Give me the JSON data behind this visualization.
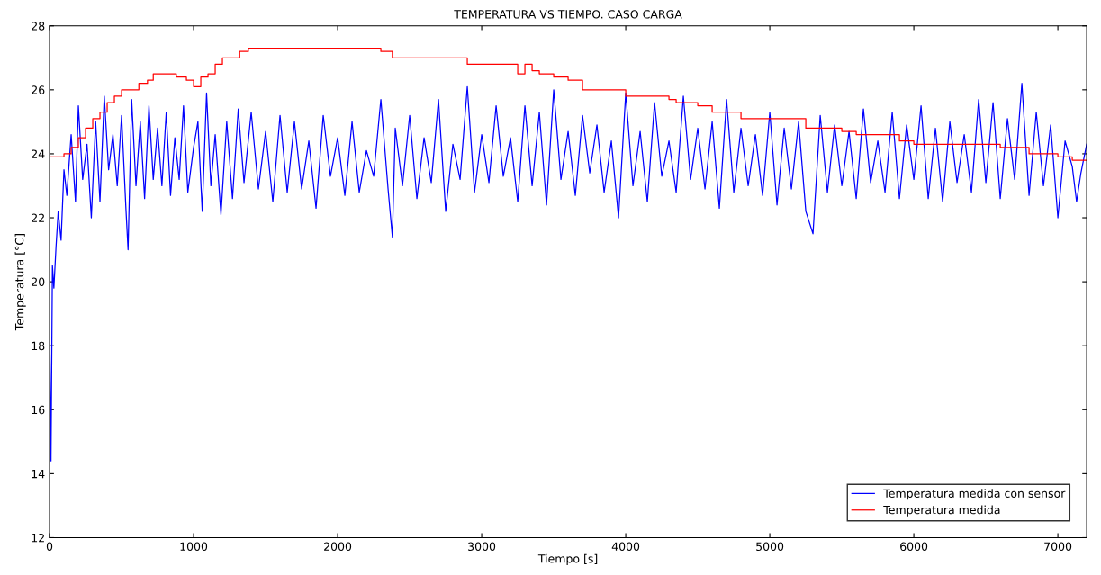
{
  "chart_data": {
    "type": "line",
    "title": "TEMPERATURA VS TIEMPO. CASO CARGA",
    "xlabel": "Tiempo [s]",
    "ylabel": "Temperatura [°C]",
    "xlim": [
      0,
      7200
    ],
    "ylim": [
      12,
      28
    ],
    "xticks": [
      0,
      1000,
      2000,
      3000,
      4000,
      5000,
      6000,
      7000
    ],
    "yticks": [
      12,
      14,
      16,
      18,
      20,
      22,
      24,
      26,
      28
    ],
    "grid": false,
    "legend": "bottom right",
    "line_style": "solid",
    "marker": "none",
    "series": [
      {
        "name": "Temperatura medida con sensor",
        "color": "#0000ff",
        "x": [
          0,
          10,
          20,
          30,
          45,
          60,
          80,
          100,
          120,
          150,
          180,
          200,
          230,
          260,
          290,
          320,
          350,
          380,
          410,
          440,
          470,
          500,
          530,
          545,
          570,
          600,
          630,
          660,
          690,
          720,
          750,
          780,
          810,
          840,
          870,
          900,
          930,
          960,
          1000,
          1030,
          1060,
          1090,
          1120,
          1150,
          1190,
          1230,
          1270,
          1310,
          1350,
          1400,
          1450,
          1500,
          1550,
          1600,
          1650,
          1700,
          1750,
          1800,
          1850,
          1900,
          1950,
          2000,
          2050,
          2100,
          2150,
          2200,
          2250,
          2300,
          2350,
          2380,
          2400,
          2450,
          2500,
          2550,
          2600,
          2650,
          2700,
          2750,
          2800,
          2850,
          2900,
          2950,
          3000,
          3050,
          3100,
          3150,
          3200,
          3250,
          3300,
          3350,
          3400,
          3450,
          3500,
          3550,
          3600,
          3650,
          3700,
          3750,
          3800,
          3850,
          3900,
          3950,
          4000,
          4050,
          4100,
          4150,
          4200,
          4250,
          4300,
          4350,
          4400,
          4450,
          4500,
          4550,
          4600,
          4650,
          4700,
          4750,
          4800,
          4850,
          4900,
          4950,
          5000,
          5050,
          5100,
          5150,
          5200,
          5250,
          5300,
          5350,
          5400,
          5450,
          5500,
          5550,
          5600,
          5650,
          5700,
          5750,
          5800,
          5850,
          5900,
          5950,
          6000,
          6050,
          6100,
          6150,
          6200,
          6250,
          6300,
          6350,
          6400,
          6450,
          6500,
          6550,
          6600,
          6650,
          6700,
          6750,
          6800,
          6850,
          6900,
          6950,
          7000,
          7050,
          7100,
          7130,
          7160,
          7200
        ],
        "values": [
          18.7,
          14.4,
          20.5,
          19.8,
          21.1,
          22.2,
          21.3,
          23.5,
          22.7,
          24.6,
          22.5,
          25.5,
          23.2,
          24.3,
          22.0,
          25.0,
          22.5,
          25.8,
          23.5,
          24.6,
          23.0,
          25.2,
          22.3,
          21.0,
          25.7,
          23.0,
          25.0,
          22.6,
          25.5,
          23.2,
          24.8,
          23.0,
          25.3,
          22.7,
          24.5,
          23.2,
          25.5,
          22.8,
          24.2,
          25.0,
          22.2,
          25.9,
          23.0,
          24.6,
          22.1,
          25.0,
          22.6,
          25.4,
          23.1,
          25.3,
          22.9,
          24.7,
          22.5,
          25.2,
          22.8,
          25.0,
          22.9,
          24.4,
          22.3,
          25.2,
          23.3,
          24.5,
          22.7,
          25.0,
          22.8,
          24.1,
          23.3,
          25.7,
          22.9,
          21.4,
          24.8,
          23.0,
          25.2,
          22.6,
          24.5,
          23.1,
          25.7,
          22.2,
          24.3,
          23.2,
          26.1,
          22.8,
          24.6,
          23.1,
          25.5,
          23.3,
          24.5,
          22.5,
          25.5,
          23.0,
          25.3,
          22.4,
          26.0,
          23.2,
          24.7,
          22.7,
          25.2,
          23.4,
          24.9,
          22.8,
          24.4,
          22.0,
          25.9,
          23.0,
          24.7,
          22.5,
          25.6,
          23.3,
          24.4,
          22.8,
          25.8,
          23.2,
          24.8,
          22.9,
          25.0,
          22.3,
          25.7,
          22.8,
          24.8,
          23.0,
          24.6,
          22.7,
          25.3,
          22.4,
          24.8,
          22.9,
          25.0,
          22.2,
          21.5,
          25.2,
          22.8,
          24.9,
          23.0,
          24.7,
          22.6,
          25.4,
          23.1,
          24.4,
          22.8,
          25.3,
          22.6,
          24.9,
          23.2,
          25.5,
          22.6,
          24.8,
          22.5,
          25.0,
          23.1,
          24.6,
          22.8,
          25.7,
          23.1,
          25.6,
          22.6,
          25.1,
          23.2,
          26.2,
          22.7,
          25.3,
          23.0,
          24.9,
          22.0,
          24.4,
          23.6,
          22.5,
          23.4,
          24.3
        ]
      },
      {
        "name": "Temperatura medida",
        "type": "step",
        "color": "#ff0000",
        "x": [
          0,
          30,
          100,
          150,
          200,
          250,
          300,
          350,
          400,
          450,
          500,
          560,
          620,
          680,
          720,
          800,
          880,
          950,
          1000,
          1050,
          1100,
          1150,
          1200,
          1250,
          1320,
          1380,
          1430,
          1500,
          1800,
          2000,
          2300,
          2380,
          2400,
          2600,
          2900,
          2920,
          3000,
          3250,
          3300,
          3350,
          3400,
          3500,
          3600,
          3650,
          3700,
          3720,
          4000,
          4200,
          4300,
          4350,
          4500,
          4600,
          4650,
          4800,
          5000,
          5100,
          5250,
          5300,
          5500,
          5600,
          5800,
          5900,
          6000,
          6200,
          6400,
          6600,
          6700,
          6800,
          6900,
          7000,
          7100,
          7200
        ],
        "values": [
          24.0,
          23.9,
          23.9,
          24.0,
          24.2,
          24.5,
          24.8,
          25.1,
          25.3,
          25.6,
          25.8,
          26.0,
          26.0,
          26.2,
          26.3,
          26.5,
          26.5,
          26.4,
          26.3,
          26.1,
          26.4,
          26.5,
          26.8,
          27.0,
          27.0,
          27.2,
          27.3,
          27.3,
          27.3,
          27.3,
          27.3,
          27.2,
          27.0,
          27.0,
          27.0,
          26.8,
          26.8,
          26.8,
          26.5,
          26.8,
          26.6,
          26.5,
          26.4,
          26.3,
          26.3,
          26.0,
          26.0,
          25.8,
          25.8,
          25.7,
          25.6,
          25.5,
          25.3,
          25.3,
          25.1,
          25.1,
          25.1,
          24.8,
          24.8,
          24.7,
          24.6,
          24.6,
          24.4,
          24.3,
          24.3,
          24.3,
          24.2,
          24.2,
          24.0,
          24.0,
          23.9,
          23.8
        ]
      }
    ]
  }
}
